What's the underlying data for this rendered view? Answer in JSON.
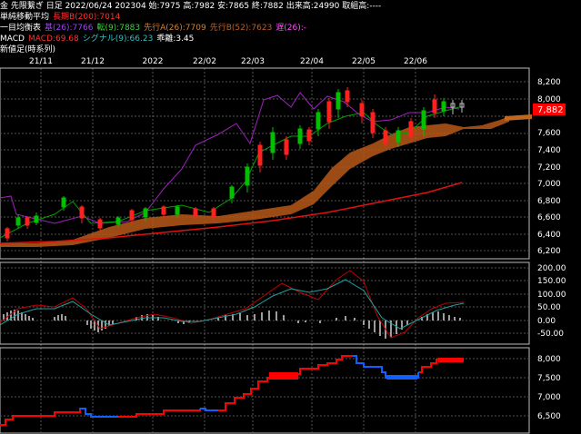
{
  "header": {
    "line1": "金 先限繋ぎ 日足 2022/06/24 202304 始:7975 高:7982 安:7865 終:7882 出来高:24990 取組高:----",
    "ma_label": "単純移動平均",
    "ma_value": "長期B(200):7014",
    "ichimoku_label": "一目均衡表",
    "ichimoku_base": "基(26):7766",
    "ichimoku_conv": "転(9):7883",
    "ichimoku_spanA": "先行A(26):7709",
    "ichimoku_spanB": "先行B(52):7623",
    "ichimoku_lag": "遅(26):-",
    "macd_label": "MACD",
    "macd_value": "MACD:69.68",
    "macd_signal": "シグナル(9):66.23",
    "macd_hist": "乖離:3.45",
    "newprice_label": "新値足(時系列)"
  },
  "x_axis_labels": [
    "21/11",
    "21/12",
    "2022",
    "22/02",
    "22/03",
    "22/04",
    "22/05",
    "22/06"
  ],
  "price_panel": {
    "y_ticks": [
      "8,200",
      "8,000",
      "7,800",
      "7,600",
      "7,400",
      "7,200",
      "7,000",
      "6,800",
      "6,600",
      "6,400",
      "6,200"
    ],
    "last_price": "7,882",
    "last_price_color": "#ff0000"
  },
  "macd_panel": {
    "y_ticks": [
      "200.00",
      "150.00",
      "100.00",
      "50.00",
      "0.00",
      "-50.00"
    ]
  },
  "newprice_panel": {
    "y_ticks": [
      "8,000",
      "7,500",
      "7,000",
      "6,500"
    ]
  },
  "colors": {
    "up_candle": "#00c000",
    "down_candle": "#ff2020",
    "cloud": "#c05010",
    "ma200": "#e00000",
    "base_line": "#a020c0",
    "conv_line": "#00a000",
    "macd": "#c00000",
    "signal": "#20a0a0",
    "newprice_up": "#ff0000",
    "newprice_down": "#1060ff"
  }
}
